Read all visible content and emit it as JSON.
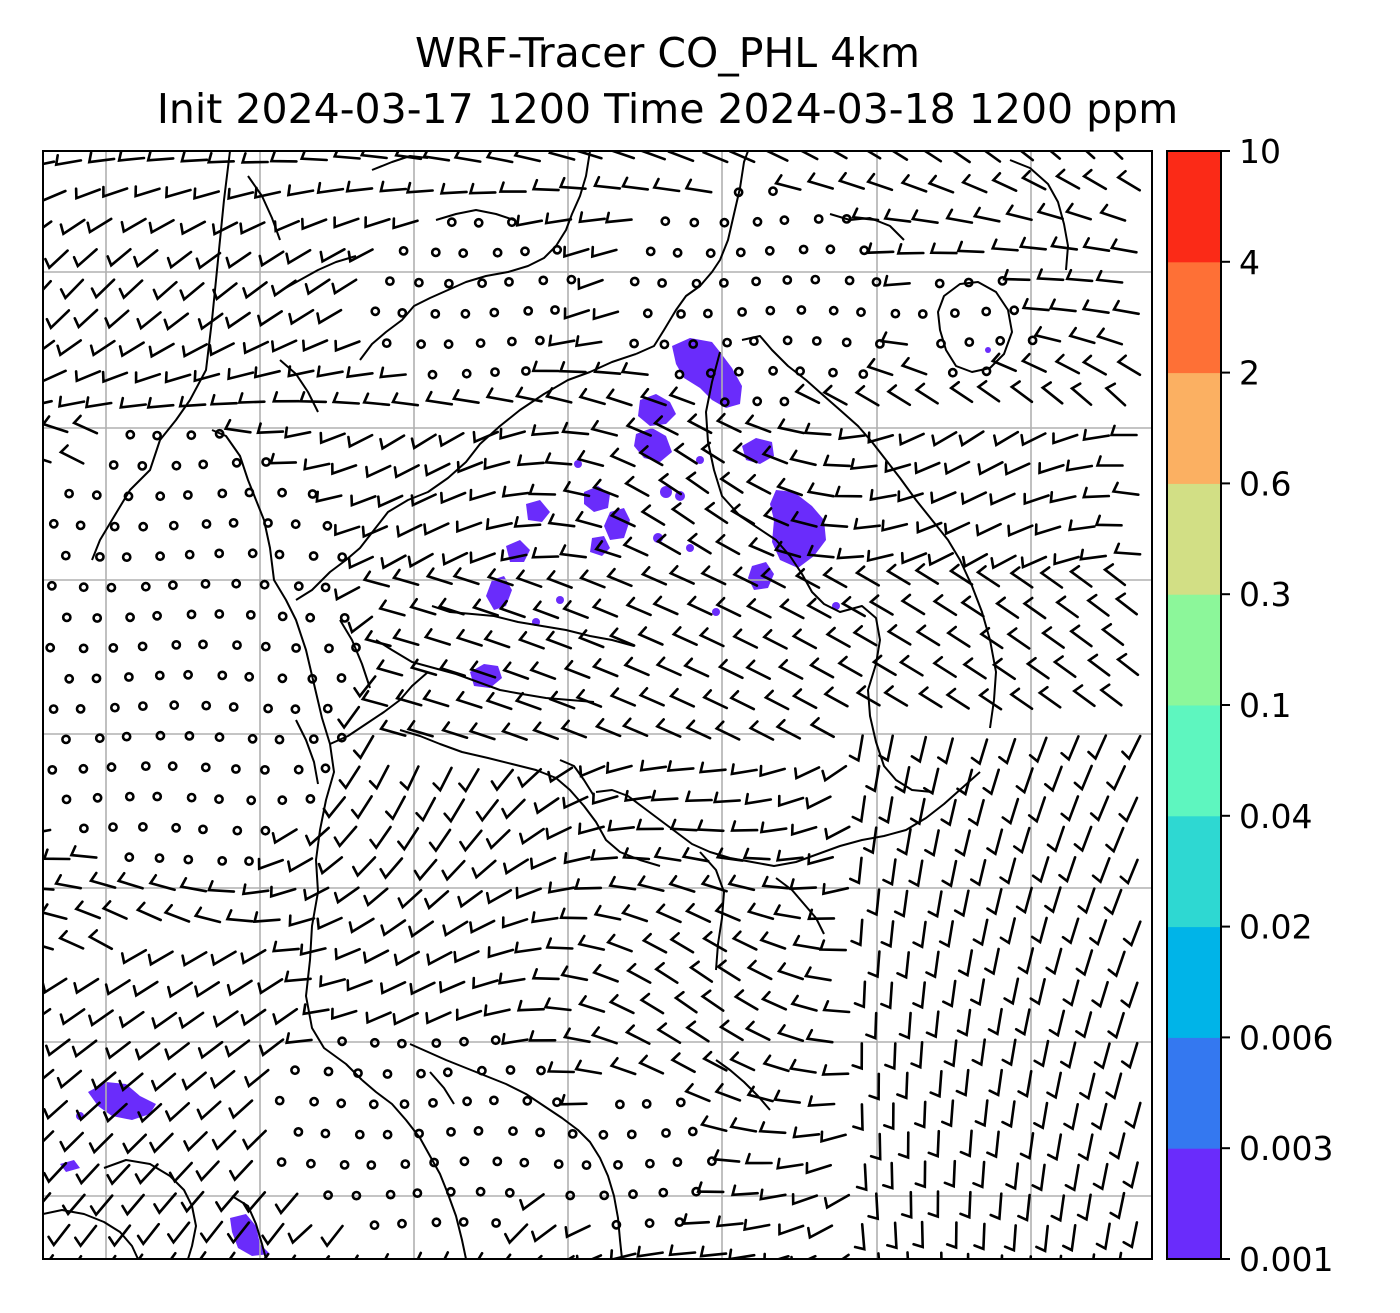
{
  "title": {
    "line1": "WRF-Tracer CO_PHL 4km",
    "line2": "Init 2024-03-17 1200 Time 2024-03-18 1200 ppm"
  },
  "colorbar": {
    "levels": [
      "0.001",
      "0.003",
      "0.006",
      "0.02",
      "0.04",
      "0.1",
      "0.3",
      "0.6",
      "2",
      "4",
      "10"
    ],
    "colors": [
      "#6a2cfb",
      "#3478f0",
      "#00b4e8",
      "#2ed8d2",
      "#5ef6bf",
      "#8cf79a",
      "#d2df85",
      "#fbb062",
      "#fe7036",
      "#fb2a17"
    ]
  },
  "map": {
    "tracer_color": "#6a2cfb",
    "grid_color": "#b0b0b0",
    "wind_symbol": "barbs",
    "calm_symbol": "circle"
  }
}
